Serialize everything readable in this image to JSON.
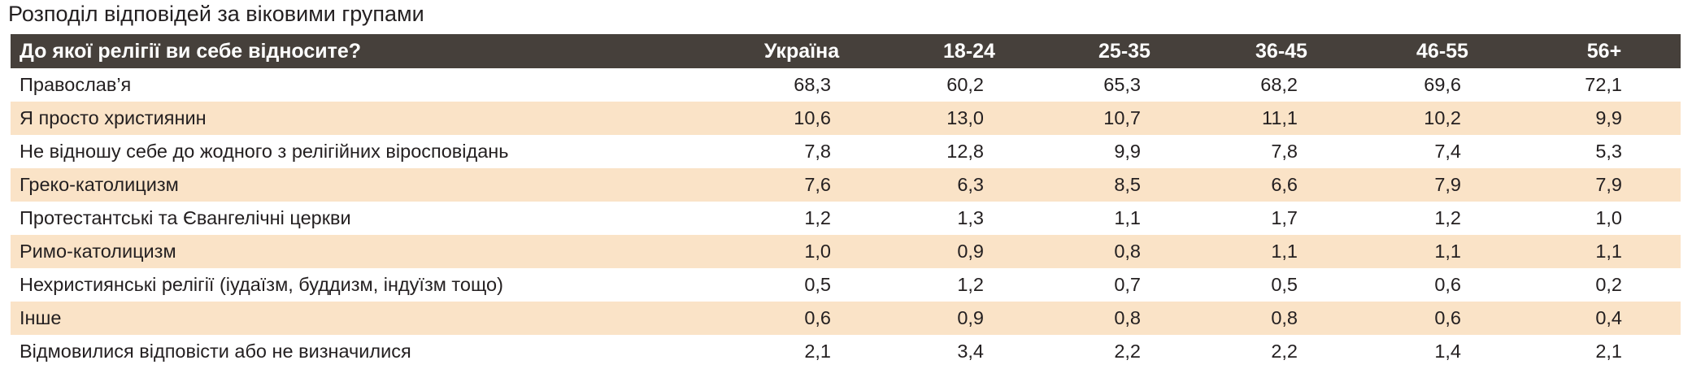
{
  "title": "Розподіл відповідей за віковими групами",
  "table": {
    "header": [
      "До якої релігії ви себе відносите?",
      "Україна",
      "18-24",
      "25-35",
      "36-45",
      "46-55",
      "56+"
    ],
    "rows": [
      [
        "Православ’я",
        "68,3",
        "60,2",
        "65,3",
        "68,2",
        "69,6",
        "72,1"
      ],
      [
        "Я просто християнин",
        "10,6",
        "13,0",
        "10,7",
        "11,1",
        "10,2",
        "9,9"
      ],
      [
        "Не відношу себе до жодного з релігійних віросповідань",
        "7,8",
        "12,8",
        "9,9",
        "7,8",
        "7,4",
        "5,3"
      ],
      [
        "Греко-католицизм",
        "7,6",
        "6,3",
        "8,5",
        "6,6",
        "7,9",
        "7,9"
      ],
      [
        "Протестантські та Євангелічні церкви",
        "1,2",
        "1,3",
        "1,1",
        "1,7",
        "1,2",
        "1,0"
      ],
      [
        "Римо-католицизм",
        "1,0",
        "0,9",
        "0,8",
        "1,1",
        "1,1",
        "1,1"
      ],
      [
        "Нехристиянські релігії (іудаїзм, буддизм, індуїзм тощо)",
        "0,5",
        "1,2",
        "0,7",
        "0,5",
        "0,6",
        "0,2"
      ],
      [
        "Інше",
        "0,6",
        "0,9",
        "0,8",
        "0,8",
        "0,6",
        "0,4"
      ],
      [
        "Відмовилися відповісти або не визначилися",
        "2,1",
        "3,4",
        "2,2",
        "2,2",
        "1,4",
        "2,1"
      ]
    ]
  }
}
